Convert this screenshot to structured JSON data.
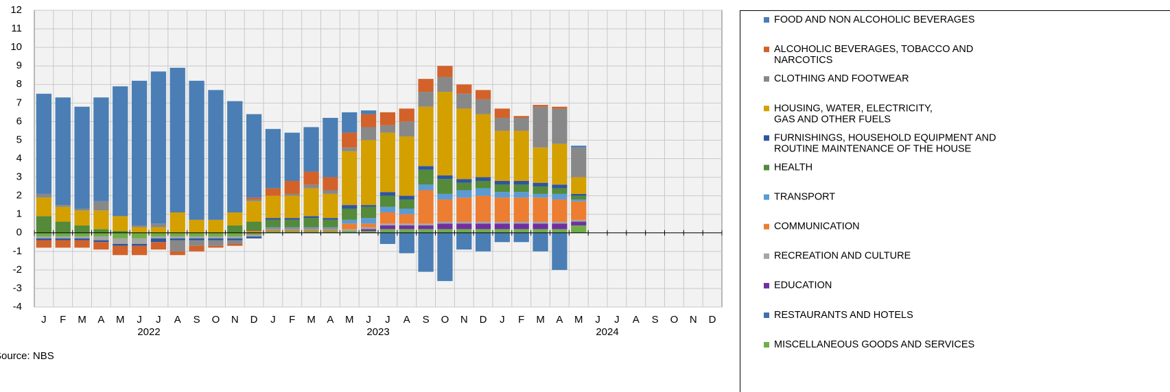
{
  "chart_data": {
    "type": "bar",
    "stacked": true,
    "categories": [
      "J",
      "F",
      "M",
      "A",
      "M",
      "J",
      "J",
      "A",
      "S",
      "O",
      "N",
      "D",
      "J",
      "F",
      "M",
      "A",
      "M",
      "J",
      "J",
      "A",
      "S",
      "O",
      "N",
      "D",
      "J",
      "F",
      "M",
      "A",
      "M",
      "J",
      "J",
      "A",
      "S",
      "O",
      "N",
      "D"
    ],
    "years": [
      "2022",
      "2023",
      "2024"
    ],
    "source": "Source: NBS",
    "ylim": [
      -4,
      12
    ],
    "yticks": [
      -4,
      -3,
      -2,
      -1,
      0,
      1,
      2,
      3,
      4,
      5,
      6,
      7,
      8,
      9,
      10,
      11,
      12
    ],
    "grid": true,
    "legend": "right",
    "series": [
      {
        "name": "FOOD AND NON ALCOHOLIC BEVERAGES",
        "color": "#4a7eb5",
        "values": [
          5.4,
          5.8,
          5.5,
          5.6,
          7.0,
          7.8,
          8.2,
          7.8,
          7.5,
          7.0,
          6.0,
          4.5,
          3.2,
          2.6,
          2.4,
          3.2,
          1.1,
          0.2,
          -0.6,
          -1.1,
          -2.1,
          -2.6,
          -0.9,
          -1.0,
          -0.5,
          -0.5,
          -1.0,
          -2.0,
          0.1,
          null,
          null,
          null,
          null,
          null,
          null,
          null
        ]
      },
      {
        "name": "ALCOHOLIC BEVERAGES, TOBACCO AND\nNARCOTICS",
        "color": "#d2622a",
        "values": [
          -0.4,
          -0.4,
          -0.4,
          -0.4,
          -0.5,
          -0.5,
          -0.4,
          -0.2,
          -0.3,
          -0.1,
          -0.1,
          0.1,
          0.4,
          0.7,
          0.7,
          0.7,
          0.8,
          0.7,
          0.7,
          0.7,
          0.7,
          0.6,
          0.5,
          0.5,
          0.5,
          0.1,
          0.1,
          0.1,
          0.0,
          null,
          null,
          null,
          null,
          null,
          null,
          null
        ]
      },
      {
        "name": "CLOTHING AND FOOTWEAR",
        "color": "#888888",
        "values": [
          0.2,
          0.1,
          0.1,
          0.5,
          0,
          0.1,
          0.2,
          -0.6,
          -0.3,
          -0.3,
          -0.2,
          0.1,
          0,
          0.1,
          0.2,
          0.2,
          0.2,
          0.7,
          0.4,
          0.8,
          0.8,
          0.8,
          0.8,
          0.8,
          0.7,
          0.7,
          2.2,
          1.9,
          1.6,
          null,
          null,
          null,
          null,
          null,
          null,
          null
        ]
      },
      {
        "name": "HOUSING, WATER, ELECTRICITY,\nGAS AND OTHER FUELS",
        "color": "#d4a000",
        "values": [
          1.0,
          0.8,
          0.8,
          1.0,
          0.8,
          0.3,
          0.3,
          1.1,
          0.7,
          0.7,
          0.7,
          1.1,
          1.2,
          1.2,
          1.5,
          1.3,
          2.9,
          3.5,
          3.2,
          3.2,
          3.2,
          4.5,
          3.8,
          3.4,
          2.7,
          2.7,
          1.9,
          2.2,
          0.9,
          null,
          null,
          null,
          null,
          null,
          null,
          null
        ]
      },
      {
        "name": "FURNISHINGS, HOUSEHOLD EQUIPMENT AND\nROUTINE MAINTENANCE OF THE HOUSE",
        "color": "#2e55a0",
        "values": [
          -0.1,
          -0.1,
          -0.1,
          -0.1,
          -0.1,
          -0.1,
          -0.2,
          -0.1,
          -0.1,
          -0.1,
          -0.1,
          -0.1,
          0.1,
          0.1,
          0.1,
          0.1,
          0.2,
          0.1,
          0.2,
          0.2,
          0.2,
          0.2,
          0.2,
          0.2,
          0.2,
          0.2,
          0.2,
          0.2,
          0.1,
          null,
          null,
          null,
          null,
          null,
          null,
          null
        ]
      },
      {
        "name": "HEALTH",
        "color": "#548a3a",
        "values": [
          0.9,
          0.6,
          0.4,
          0.2,
          0.1,
          0,
          0,
          0,
          0,
          0,
          0.4,
          0.5,
          0.4,
          0.4,
          0.5,
          0.4,
          0.6,
          0.6,
          0.6,
          0.5,
          0.8,
          0.8,
          0.4,
          0.4,
          0.4,
          0.4,
          0.4,
          0.3,
          0.2,
          null,
          null,
          null,
          null,
          null,
          null,
          null
        ]
      },
      {
        "name": "TRANSPORT",
        "color": "#5b9bd5",
        "values": [
          0,
          0,
          0,
          0,
          0,
          0,
          0,
          0,
          0,
          0,
          0,
          0,
          0.1,
          0.1,
          0.1,
          0.1,
          0.2,
          0.3,
          0.3,
          0.3,
          0.3,
          0.3,
          0.4,
          0.4,
          0.3,
          0.3,
          0.2,
          0.3,
          0.1,
          null,
          null,
          null,
          null,
          null,
          null,
          null
        ]
      },
      {
        "name": "COMMUNICATION",
        "color": "#ed7d31",
        "values": [
          0,
          0,
          0,
          0,
          0,
          0,
          0,
          0,
          0,
          0,
          0,
          0.1,
          0.1,
          0.1,
          0.1,
          0.1,
          0.3,
          0.2,
          0.6,
          0.5,
          1.8,
          1.2,
          1.3,
          1.4,
          1.3,
          1.3,
          1.3,
          1.2,
          1.0,
          null,
          null,
          null,
          null,
          null,
          null,
          null
        ]
      },
      {
        "name": "RECREATION AND CULTURE",
        "color": "#a5a5a5",
        "values": [
          -0.1,
          -0.1,
          -0.1,
          -0.2,
          -0.3,
          -0.3,
          -0.1,
          -0.1,
          -0.1,
          -0.1,
          -0.1,
          -0.1,
          0,
          0,
          0,
          0,
          0.1,
          0.1,
          0.1,
          0.1,
          0.1,
          0.1,
          0.1,
          0.1,
          0.1,
          0.1,
          0.1,
          0.1,
          0.1,
          null,
          null,
          null,
          null,
          null,
          null,
          null
        ]
      },
      {
        "name": "EDUCATION",
        "color": "#7030a0",
        "values": [
          0,
          0,
          0,
          0,
          0,
          0,
          0,
          0,
          0,
          0,
          0,
          0,
          0,
          0,
          0,
          0,
          0,
          0.1,
          0.2,
          0.2,
          0.2,
          0.3,
          0.3,
          0.3,
          0.3,
          0.3,
          0.3,
          0.3,
          0.2,
          null,
          null,
          null,
          null,
          null,
          null,
          null
        ]
      },
      {
        "name": "RESTAURANTS AND HOTELS",
        "color": "#3e6fb0",
        "values": [
          0,
          0,
          0,
          0,
          0,
          0,
          0,
          0,
          0,
          0,
          0,
          0,
          0,
          0,
          0,
          0,
          0,
          0,
          0,
          0,
          0,
          0,
          0,
          0,
          0,
          0,
          0,
          0,
          0,
          null,
          null,
          null,
          null,
          null,
          null,
          null
        ]
      },
      {
        "name": "MISCELLANEOUS GOODS AND SERVICES",
        "color": "#70ad47",
        "values": [
          -0.2,
          -0.2,
          -0.2,
          -0.2,
          -0.3,
          -0.3,
          -0.2,
          -0.2,
          -0.2,
          -0.2,
          -0.2,
          -0.1,
          0.1,
          0.1,
          0.1,
          0.1,
          0.1,
          0.1,
          0.2,
          0.2,
          0.2,
          0.2,
          0.2,
          0.2,
          0.2,
          0.2,
          0.2,
          0.2,
          0.4,
          null,
          null,
          null,
          null,
          null,
          null,
          null
        ]
      }
    ]
  }
}
